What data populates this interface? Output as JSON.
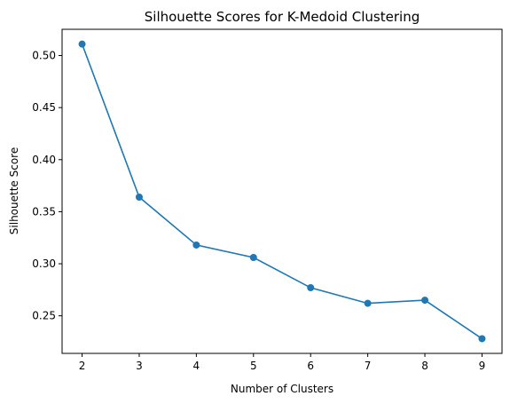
{
  "chart_data": {
    "type": "line",
    "title": "Silhouette Scores for K-Medoid Clustering",
    "xlabel": "Number of Clusters",
    "ylabel": "Silhouette Score",
    "x": [
      2,
      3,
      4,
      5,
      6,
      7,
      8,
      9
    ],
    "series": [
      {
        "values": [
          0.511,
          0.364,
          0.318,
          0.306,
          0.277,
          0.262,
          0.265,
          0.228
        ],
        "color": "#1f77b4",
        "marker": "circle"
      }
    ],
    "xticks": [
      "2",
      "3",
      "4",
      "5",
      "6",
      "7",
      "8",
      "9"
    ],
    "yticks": [
      "0.25",
      "0.30",
      "0.35",
      "0.40",
      "0.45",
      "0.50"
    ],
    "xlim": [
      1.65,
      9.35
    ],
    "ylim": [
      0.2139,
      0.5252
    ],
    "grid": false,
    "legend": "none"
  }
}
